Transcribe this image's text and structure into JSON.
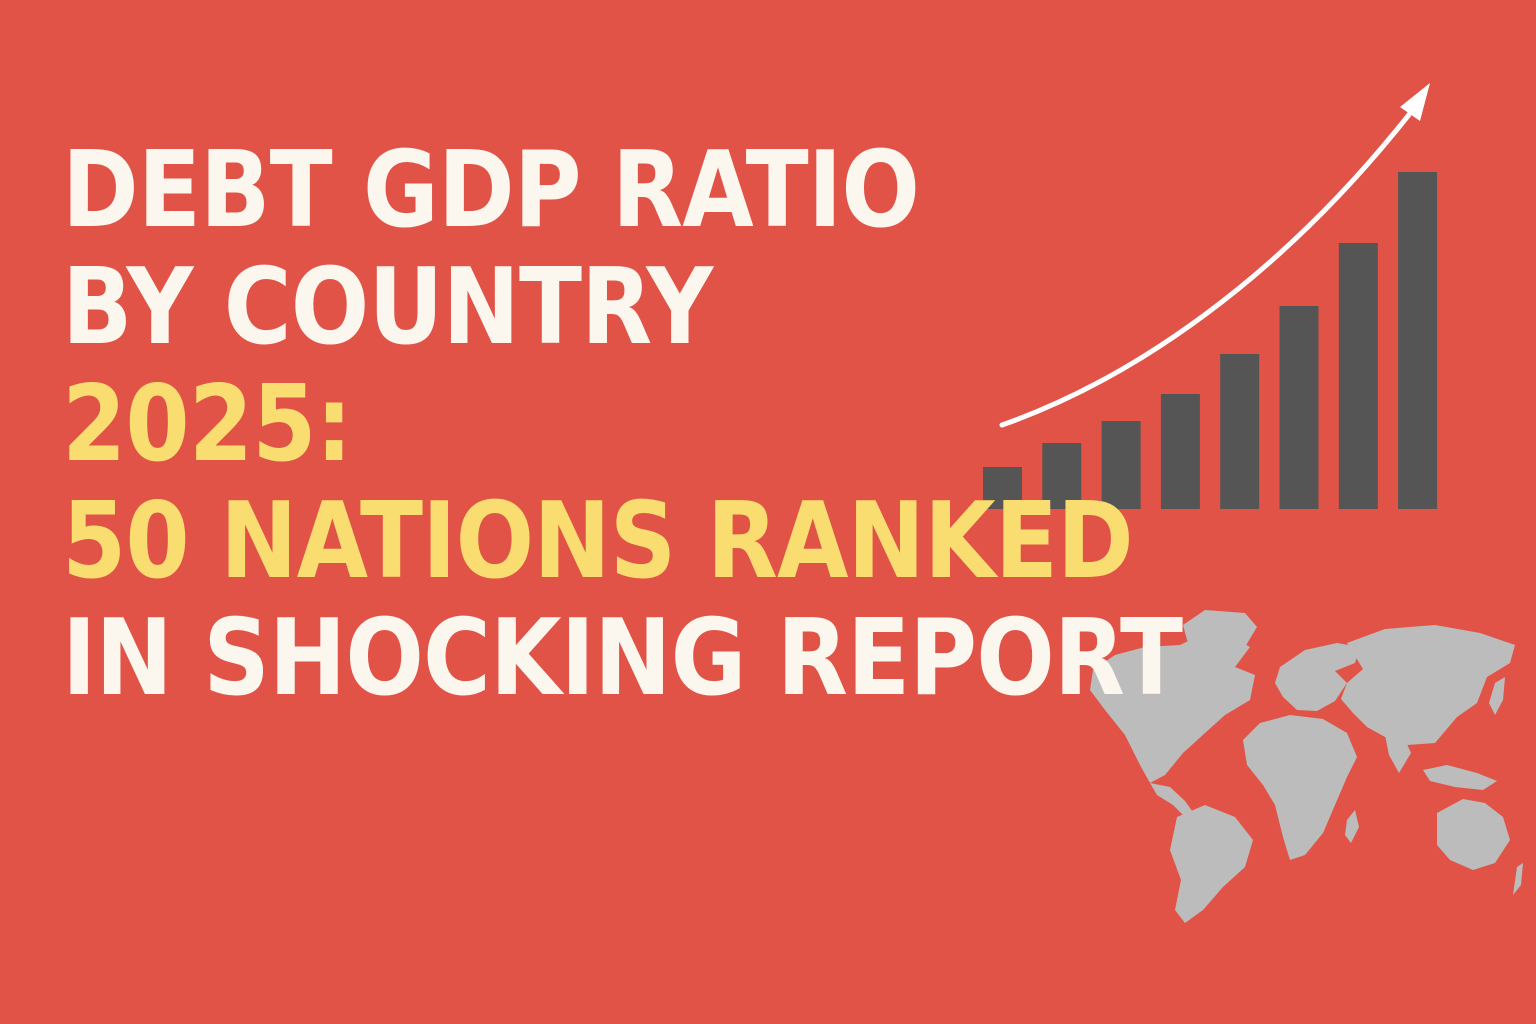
{
  "headline": {
    "line1": "DEBT GDP RATIO",
    "line2": "BY COUNTRY",
    "line3": "2025:",
    "line4": "50 NATIONS RANKED",
    "line5": "IN SHOCKING REPORT"
  },
  "colors": {
    "background": "#e25347",
    "headline_white": "#fbf6ee",
    "headline_yellow": "#fadd70",
    "bars": "#555555",
    "arrow": "#ffffff",
    "map": "#bcbcbc"
  },
  "icons": {
    "chart": "bar-chart-icon",
    "trend": "trend-arrow-icon",
    "map": "world-map-icon"
  },
  "chart_data": {
    "type": "bar",
    "categories": [
      "",
      "",
      "",
      "",
      "",
      "",
      "",
      ""
    ],
    "values": [
      42,
      66,
      88,
      115,
      155,
      203,
      266,
      337
    ],
    "title": "",
    "xlabel": "",
    "ylabel": "",
    "ylim": [
      0,
      340
    ],
    "grid": false,
    "trend_arrow": true
  }
}
